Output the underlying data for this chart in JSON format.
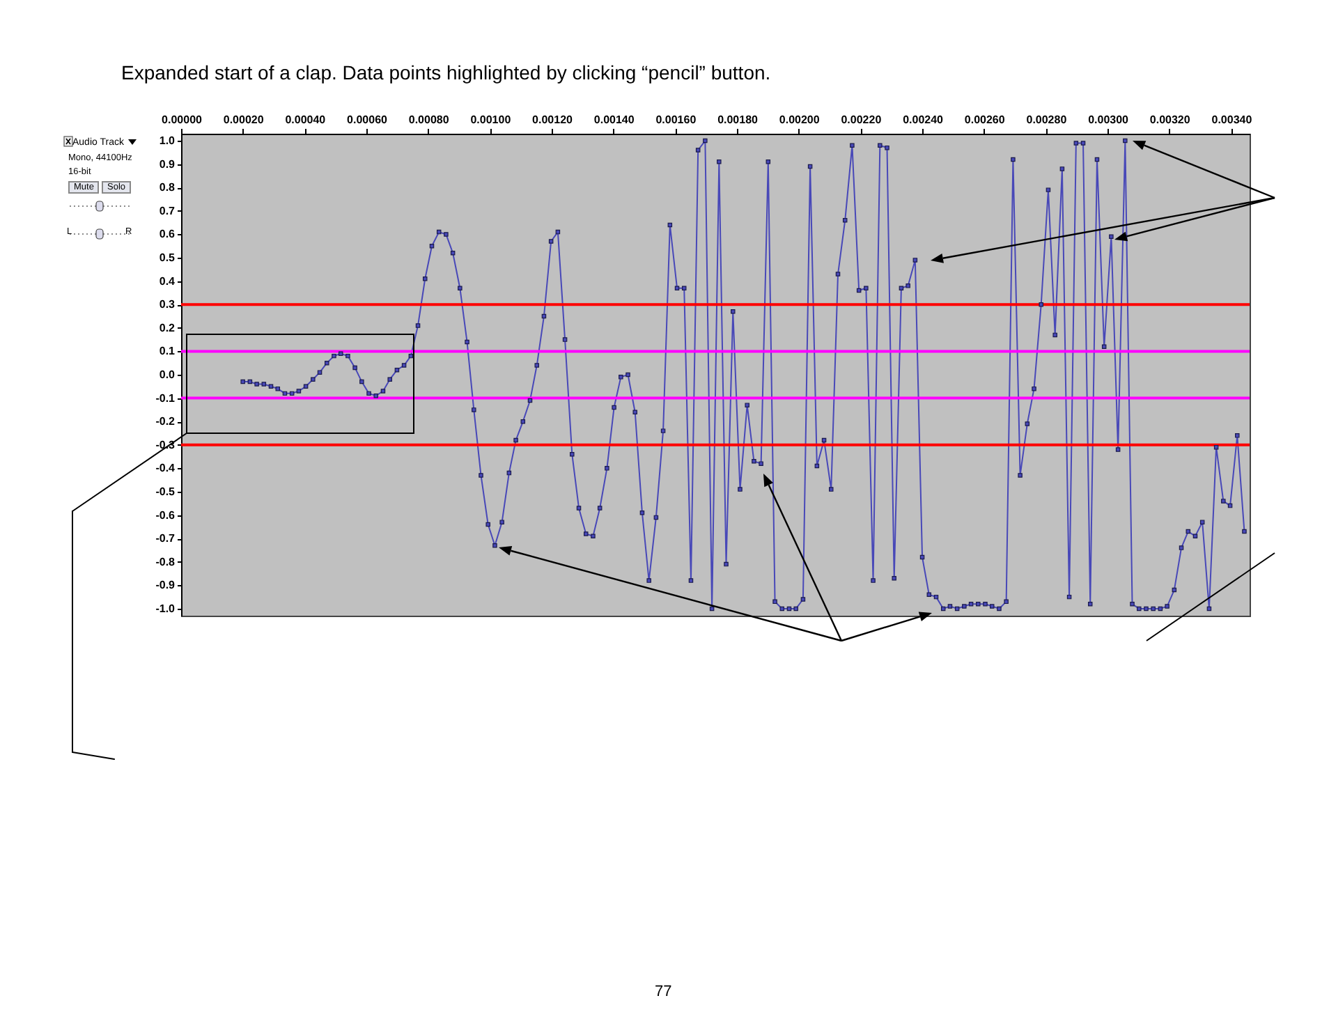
{
  "chart_data": {
    "type": "line",
    "title": "Expanded start of a clap. Data points highlighted by clicking “pencil” button.",
    "x": [
      0.0002,
      0.000223,
      0.000245,
      0.000268,
      0.000291,
      0.000313,
      0.000336,
      0.000359,
      0.000381,
      0.000404,
      0.000427,
      0.000449,
      0.000472,
      0.000495,
      0.000517,
      0.00054,
      0.000563,
      0.000585,
      0.000608,
      0.000631,
      0.000654,
      0.000676,
      0.000699,
      0.000722,
      0.000744,
      0.000767,
      0.00079,
      0.000812,
      0.000835,
      0.000858,
      0.00088,
      0.000903,
      0.000926,
      0.000948,
      0.000971,
      0.000994,
      0.001016,
      0.001039,
      0.001062,
      0.001084,
      0.001107,
      0.00113,
      0.001152,
      0.001175,
      0.001198,
      0.00122,
      0.001243,
      0.001266,
      0.001288,
      0.001311,
      0.001334,
      0.001356,
      0.001379,
      0.001402,
      0.001424,
      0.001447,
      0.00147,
      0.001493,
      0.001515,
      0.001538,
      0.001561,
      0.001583,
      0.001606,
      0.001629,
      0.001651,
      0.001674,
      0.001697,
      0.001719,
      0.001742,
      0.001765,
      0.001787,
      0.00181,
      0.001833,
      0.001855,
      0.001878,
      0.001901,
      0.001923,
      0.001946,
      0.001969,
      0.001991,
      0.002014,
      0.002037,
      0.002059,
      0.002082,
      0.002105,
      0.002127,
      0.00215,
      0.002173,
      0.002195,
      0.002218,
      0.002241,
      0.002263,
      0.002286,
      0.002309,
      0.002332,
      0.002354,
      0.002377,
      0.0024,
      0.002422,
      0.002445,
      0.002468,
      0.00249,
      0.002513,
      0.002536,
      0.002558,
      0.002581,
      0.002604,
      0.002626,
      0.002649,
      0.002672,
      0.002694,
      0.002717,
      0.00274,
      0.002762,
      0.002785,
      0.002808,
      0.00283,
      0.002853,
      0.002876,
      0.002898,
      0.002921,
      0.002944,
      0.002966,
      0.002989,
      0.003012,
      0.003034,
      0.003057,
      0.00308,
      0.003102,
      0.003125,
      0.003148,
      0.003171,
      0.003193,
      0.003216,
      0.003239,
      0.003261,
      0.003284,
      0.003307,
      0.003329,
      0.003352,
      0.003375,
      0.003397,
      0.00342,
      0.003443
    ],
    "series": [
      {
        "color": "#4848b8",
        "values": [
          -0.03,
          -0.03,
          -0.04,
          -0.04,
          -0.05,
          -0.06,
          -0.08,
          -0.08,
          -0.07,
          -0.05,
          -0.02,
          0.01,
          0.05,
          0.08,
          0.09,
          0.08,
          0.03,
          -0.03,
          -0.08,
          -0.09,
          -0.07,
          -0.02,
          0.02,
          0.04,
          0.08,
          0.21,
          0.41,
          0.55,
          0.61,
          0.6,
          0.52,
          0.37,
          0.14,
          -0.15,
          -0.43,
          -0.64,
          -0.73,
          -0.63,
          -0.42,
          -0.28,
          -0.2,
          -0.11,
          0.04,
          0.25,
          0.57,
          0.61,
          0.15,
          -0.34,
          -0.57,
          -0.68,
          -0.69,
          -0.57,
          -0.4,
          -0.14,
          -0.01,
          0.0,
          -0.16,
          -0.59,
          -0.88,
          -0.61,
          -0.24,
          0.64,
          0.37,
          0.37,
          -0.88,
          0.96,
          1.0,
          -1.0,
          0.91,
          -0.81,
          0.27,
          -0.49,
          -0.13,
          -0.37,
          -0.38,
          0.91,
          -0.97,
          -1.0,
          -1.0,
          -1.0,
          -0.96,
          0.89,
          -0.39,
          -0.28,
          -0.49,
          0.43,
          0.66,
          0.98,
          0.36,
          0.37,
          -0.88,
          0.98,
          0.97,
          -0.87,
          0.37,
          0.38,
          0.49,
          -0.78,
          -0.94,
          -0.95,
          -1.0,
          -0.99,
          -1.0,
          -0.99,
          -0.98,
          -0.98,
          -0.98,
          -0.99,
          -1.0,
          -0.97,
          0.92,
          -0.43,
          -0.21,
          -0.06,
          0.3,
          0.79,
          0.17,
          0.88,
          -0.95,
          0.99,
          0.99,
          -0.98,
          0.92,
          0.12,
          0.59,
          -0.32,
          1.0,
          -0.98,
          -1.0,
          -1.0,
          -1.0,
          -1.0,
          -0.99,
          -0.92,
          -0.74,
          -0.67,
          -0.69,
          -0.63,
          -1.0,
          -0.31,
          -0.54,
          -0.56,
          -0.26,
          -0.67
        ]
      }
    ],
    "xlim": [
      0,
      0.00346
    ],
    "ylim": [
      -1.03,
      1.03
    ],
    "xticks": [
      {
        "value": 0,
        "label": "0.00000"
      },
      {
        "value": 0.0002,
        "label": "0.00020"
      },
      {
        "value": 0.0004,
        "label": "0.00040"
      },
      {
        "value": 0.0006,
        "label": "0.00060"
      },
      {
        "value": 0.0008,
        "label": "0.00080"
      },
      {
        "value": 0.001,
        "label": "0.00100"
      },
      {
        "value": 0.0012,
        "label": "0.00120"
      },
      {
        "value": 0.0014,
        "label": "0.00140"
      },
      {
        "value": 0.0016,
        "label": "0.00160"
      },
      {
        "value": 0.0018,
        "label": "0.00180"
      },
      {
        "value": 0.002,
        "label": "0.00200"
      },
      {
        "value": 0.0022,
        "label": "0.00220"
      },
      {
        "value": 0.0024,
        "label": "0.00240"
      },
      {
        "value": 0.0026,
        "label": "0.00260"
      },
      {
        "value": 0.0028,
        "label": "0.00280"
      },
      {
        "value": 0.003,
        "label": "0.00300"
      },
      {
        "value": 0.0032,
        "label": "0.00320"
      },
      {
        "value": 0.0034,
        "label": "0.00340"
      }
    ],
    "yticks": [
      {
        "value": 1,
        "label": "1.0"
      },
      {
        "value": 0.9,
        "label": "0.9"
      },
      {
        "value": 0.8,
        "label": "0.8"
      },
      {
        "value": 0.7,
        "label": "0.7"
      },
      {
        "value": 0.6,
        "label": "0.6"
      },
      {
        "value": 0.5,
        "label": "0.5"
      },
      {
        "value": 0.4,
        "label": "0.4"
      },
      {
        "value": 0.3,
        "label": "0.3"
      },
      {
        "value": 0.2,
        "label": "0.2"
      },
      {
        "value": 0.1,
        "label": "0.1"
      },
      {
        "value": 0,
        "label": "0.0"
      },
      {
        "value": -0.1,
        "label": "-0.1"
      },
      {
        "value": -0.2,
        "label": "-0.2"
      },
      {
        "value": -0.3,
        "label": "-0.3"
      },
      {
        "value": -0.4,
        "label": "-0.4"
      },
      {
        "value": -0.5,
        "label": "-0.5"
      },
      {
        "value": -0.6,
        "label": "-0.6"
      },
      {
        "value": -0.7,
        "label": "-0.7"
      },
      {
        "value": -0.8,
        "label": "-0.8"
      },
      {
        "value": -0.9,
        "label": "-0.9"
      },
      {
        "value": -1,
        "label": "-1.0"
      }
    ],
    "ref_lines": [
      {
        "axis": "y",
        "value": 0.3,
        "color": "#ff0000"
      },
      {
        "axis": "y",
        "value": 0.1,
        "color": "#ff00ff"
      },
      {
        "axis": "y",
        "value": -0.1,
        "color": "#ff00ff"
      },
      {
        "axis": "y",
        "value": -0.3,
        "color": "#ff0000"
      }
    ],
    "marker": "square",
    "annotations": [
      "77",
      "Audio Track",
      "Mono, 44100Hz",
      "16-bit",
      "Mute",
      "Solo",
      "L",
      "R"
    ]
  }
}
